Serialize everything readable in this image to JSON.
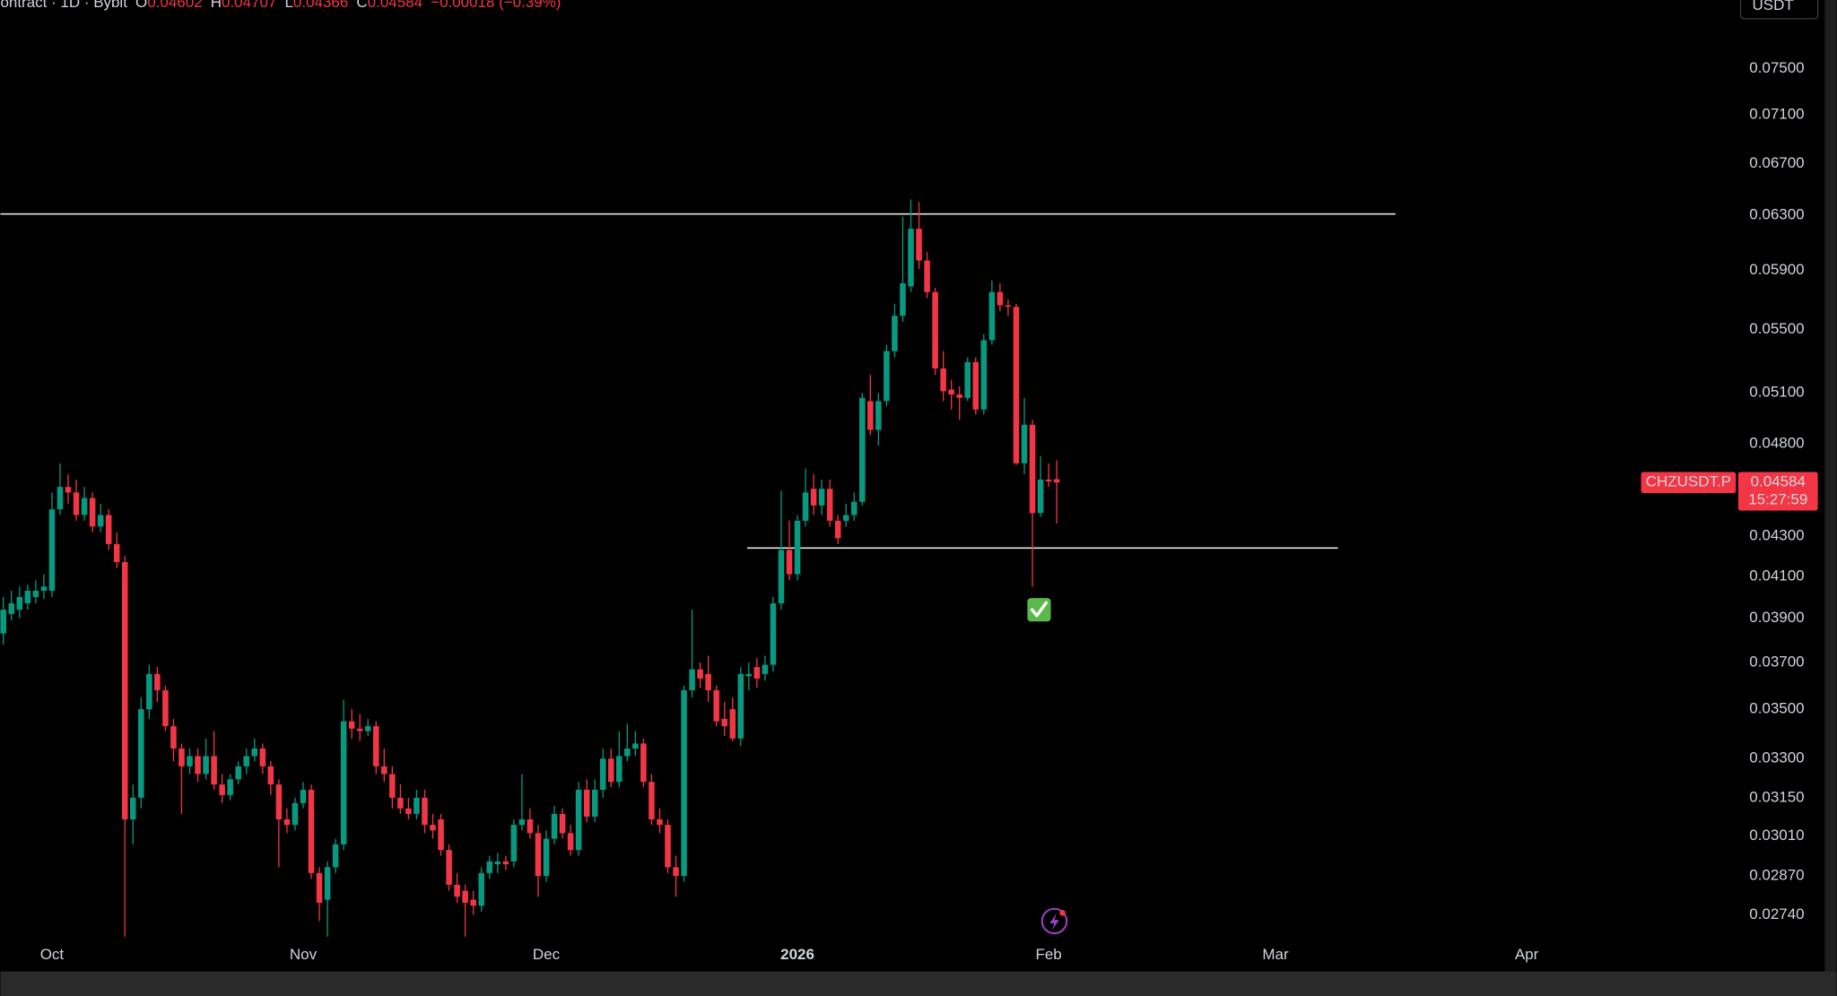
{
  "chart_data": {
    "type": "candlestick",
    "header": {
      "symbol": "ontract · 1D · Bybit",
      "open_label": "O",
      "high_label": "H",
      "low_label": "L",
      "close_label": "C",
      "change": "−0.00018 (−0.39%)"
    },
    "currency": "USDT",
    "ticker": "CHZUSDT.P",
    "countdown": "15:27:59",
    "up_color": "#089981",
    "down_color": "#f23645",
    "log_scale": true,
    "grid": false,
    "xlim": [
      -0.36,
      212.8
    ],
    "xticks": [
      {
        "value": 6,
        "label": "Oct"
      },
      {
        "value": 37,
        "label": "Nov"
      },
      {
        "value": 67,
        "label": "Dec"
      },
      {
        "value": 98,
        "label": "2026"
      },
      {
        "value": 129,
        "label": "Feb"
      },
      {
        "value": 157,
        "label": "Mar"
      },
      {
        "value": 188,
        "label": "Apr"
      }
    ],
    "ylim": [
      0.0266,
      0.0814
    ],
    "yticks": [
      {
        "value": 0.075,
        "label": "0.07500"
      },
      {
        "value": 0.071,
        "label": "0.07100"
      },
      {
        "value": 0.067,
        "label": "0.06700"
      },
      {
        "value": 0.063,
        "label": "0.06300"
      },
      {
        "value": 0.059,
        "label": "0.05900"
      },
      {
        "value": 0.055,
        "label": "0.05500"
      },
      {
        "value": 0.051,
        "label": "0.05100"
      },
      {
        "value": 0.048,
        "label": "0.04800"
      },
      {
        "value": 0.043,
        "label": "0.04300"
      },
      {
        "value": 0.041,
        "label": "0.04100"
      },
      {
        "value": 0.039,
        "label": "0.03900"
      },
      {
        "value": 0.037,
        "label": "0.03700"
      },
      {
        "value": 0.035,
        "label": "0.03500"
      },
      {
        "value": 0.033,
        "label": "0.03300"
      },
      {
        "value": 0.0315,
        "label": "0.03150"
      },
      {
        "value": 0.0301,
        "label": "0.03010"
      },
      {
        "value": 0.0287,
        "label": "0.02870"
      },
      {
        "value": 0.0274,
        "label": "0.02740"
      }
    ],
    "hlines": [
      {
        "value": 0.0631,
        "x_start": -0.36,
        "x_end": 171.8
      },
      {
        "value": 0.0424,
        "x_start": 91.8,
        "x_end": 164.7
      }
    ],
    "series": {
      "open": [
        0.0383,
        0.0392,
        0.0394,
        0.0397,
        0.04,
        0.0403,
        0.0403,
        0.0444,
        0.0456,
        0.0453,
        0.0441,
        0.045,
        0.0435,
        0.0441,
        0.0426,
        0.0417,
        0.0307,
        0.0315,
        0.035,
        0.0365,
        0.0358,
        0.0343,
        0.0334,
        0.0327,
        0.0331,
        0.0324,
        0.0331,
        0.032,
        0.0316,
        0.0322,
        0.0327,
        0.0331,
        0.0334,
        0.0327,
        0.032,
        0.0307,
        0.0305,
        0.0313,
        0.0318,
        0.0288,
        0.0279,
        0.029,
        0.0298,
        0.0345,
        0.0342,
        0.0341,
        0.0343,
        0.0327,
        0.0324,
        0.0315,
        0.0311,
        0.0309,
        0.0315,
        0.0305,
        0.0307,
        0.0296,
        0.0284,
        0.0282,
        0.0279,
        0.0277,
        0.0288,
        0.0291,
        0.0292,
        0.0292,
        0.0305,
        0.0307,
        0.0302,
        0.0287,
        0.03,
        0.0309,
        0.0302,
        0.0296,
        0.0318,
        0.0308,
        0.0318,
        0.033,
        0.0321,
        0.0331,
        0.0334,
        0.0336,
        0.0321,
        0.0307,
        0.0305,
        0.029,
        0.0287,
        0.0358,
        0.0367,
        0.0365,
        0.0358,
        0.0346,
        0.035,
        0.0338,
        0.0364,
        0.0368,
        0.0365,
        0.0369,
        0.0397,
        0.0423,
        0.0411,
        0.0438,
        0.0455,
        0.0446,
        0.0455,
        0.0438,
        0.0438,
        0.0441,
        0.0448,
        0.0505,
        0.0488,
        0.0505,
        0.0536,
        0.0559,
        0.0579,
        0.062,
        0.0597,
        0.0575,
        0.0525,
        0.0512,
        0.0509,
        0.0507,
        0.0529,
        0.05,
        0.0543,
        0.0575,
        0.0566,
        0.0565,
        0.0469,
        0.0491,
        0.0442,
        0.046,
        0.04602
      ],
      "high": [
        0.04,
        0.0403,
        0.0405,
        0.0406,
        0.0408,
        0.0411,
        0.0453,
        0.0469,
        0.0463,
        0.046,
        0.0456,
        0.0453,
        0.0447,
        0.0444,
        0.0432,
        0.042,
        0.032,
        0.0355,
        0.0369,
        0.0368,
        0.036,
        0.0346,
        0.0336,
        0.0334,
        0.0334,
        0.0338,
        0.0341,
        0.0324,
        0.0324,
        0.0329,
        0.0334,
        0.0338,
        0.0336,
        0.0329,
        0.0322,
        0.0311,
        0.0315,
        0.0321,
        0.032,
        0.029,
        0.0292,
        0.03,
        0.0354,
        0.035,
        0.0348,
        0.0346,
        0.0345,
        0.0334,
        0.0327,
        0.032,
        0.0315,
        0.0318,
        0.0318,
        0.0309,
        0.0309,
        0.0298,
        0.0288,
        0.0284,
        0.0282,
        0.029,
        0.0294,
        0.0295,
        0.0294,
        0.0307,
        0.0324,
        0.0311,
        0.0305,
        0.0303,
        0.0312,
        0.0311,
        0.0305,
        0.0321,
        0.0322,
        0.0322,
        0.0334,
        0.0334,
        0.0341,
        0.0344,
        0.0341,
        0.0338,
        0.0324,
        0.0311,
        0.0307,
        0.0294,
        0.036,
        0.0394,
        0.037,
        0.0373,
        0.036,
        0.0353,
        0.0355,
        0.0368,
        0.037,
        0.0372,
        0.0373,
        0.04,
        0.0454,
        0.0438,
        0.0441,
        0.0466,
        0.0463,
        0.046,
        0.046,
        0.0441,
        0.0447,
        0.0453,
        0.051,
        0.0521,
        0.051,
        0.054,
        0.0567,
        0.0629,
        0.0642,
        0.064,
        0.0603,
        0.0578,
        0.0536,
        0.0518,
        0.0514,
        0.0532,
        0.0532,
        0.0547,
        0.0583,
        0.0581,
        0.057,
        0.0567,
        0.0507,
        0.0494,
        0.0473,
        0.0469,
        0.04707
      ],
      "low": [
        0.0378,
        0.0389,
        0.039,
        0.0394,
        0.0397,
        0.0399,
        0.04,
        0.0441,
        0.0447,
        0.0438,
        0.0438,
        0.0432,
        0.0432,
        0.0423,
        0.0414,
        0.0267,
        0.0298,
        0.0311,
        0.0346,
        0.0353,
        0.0341,
        0.0329,
        0.0309,
        0.0324,
        0.0321,
        0.0322,
        0.0318,
        0.0313,
        0.0314,
        0.032,
        0.0324,
        0.0329,
        0.0324,
        0.0316,
        0.029,
        0.0302,
        0.0303,
        0.0311,
        0.0286,
        0.0272,
        0.0267,
        0.0288,
        0.0296,
        0.0338,
        0.0337,
        0.0339,
        0.0324,
        0.0321,
        0.0311,
        0.0309,
        0.0307,
        0.0307,
        0.0302,
        0.03,
        0.0294,
        0.0282,
        0.0278,
        0.0267,
        0.0274,
        0.0275,
        0.0286,
        0.0288,
        0.0289,
        0.029,
        0.0303,
        0.03,
        0.028,
        0.0285,
        0.0298,
        0.03,
        0.0294,
        0.0294,
        0.0306,
        0.0306,
        0.0315,
        0.0319,
        0.0319,
        0.0329,
        0.0331,
        0.0319,
        0.0305,
        0.0302,
        0.0288,
        0.028,
        0.0285,
        0.0355,
        0.0359,
        0.0353,
        0.0343,
        0.0339,
        0.0337,
        0.0335,
        0.0358,
        0.0359,
        0.0362,
        0.0366,
        0.0394,
        0.0408,
        0.0408,
        0.0435,
        0.0441,
        0.0441,
        0.0435,
        0.0426,
        0.0435,
        0.0438,
        0.0446,
        0.0485,
        0.0479,
        0.0502,
        0.0532,
        0.0555,
        0.0575,
        0.0591,
        0.0571,
        0.0521,
        0.0505,
        0.05,
        0.0494,
        0.0505,
        0.0497,
        0.0497,
        0.054,
        0.0562,
        0.0559,
        0.0468,
        0.0463,
        0.0405,
        0.044,
        0.0456,
        0.04366
      ],
      "close": [
        0.0394,
        0.0397,
        0.04,
        0.0403,
        0.0403,
        0.0405,
        0.0444,
        0.0456,
        0.0453,
        0.0441,
        0.045,
        0.0435,
        0.0441,
        0.0426,
        0.0417,
        0.0307,
        0.0315,
        0.035,
        0.0365,
        0.0358,
        0.0343,
        0.0334,
        0.0327,
        0.0331,
        0.0324,
        0.0331,
        0.032,
        0.0316,
        0.0322,
        0.0327,
        0.0331,
        0.0334,
        0.0327,
        0.032,
        0.0307,
        0.0305,
        0.0313,
        0.0318,
        0.0288,
        0.0278,
        0.029,
        0.0298,
        0.0345,
        0.0342,
        0.0341,
        0.0343,
        0.0327,
        0.0324,
        0.0315,
        0.0311,
        0.0309,
        0.0315,
        0.0305,
        0.0303,
        0.0296,
        0.0284,
        0.028,
        0.0278,
        0.0277,
        0.0288,
        0.0292,
        0.0292,
        0.0291,
        0.0305,
        0.0307,
        0.0302,
        0.0287,
        0.03,
        0.0309,
        0.0302,
        0.0296,
        0.0318,
        0.0308,
        0.0318,
        0.033,
        0.0321,
        0.0331,
        0.0334,
        0.0336,
        0.0321,
        0.0307,
        0.0305,
        0.029,
        0.0287,
        0.0358,
        0.0367,
        0.0363,
        0.0358,
        0.0345,
        0.0343,
        0.0338,
        0.0365,
        0.0365,
        0.0363,
        0.0369,
        0.0397,
        0.0423,
        0.0411,
        0.0438,
        0.0453,
        0.0446,
        0.0455,
        0.0438,
        0.0429,
        0.0441,
        0.0448,
        0.0507,
        0.0488,
        0.0505,
        0.0536,
        0.0559,
        0.0581,
        0.062,
        0.0597,
        0.0575,
        0.0525,
        0.0511,
        0.0509,
        0.0507,
        0.0529,
        0.05,
        0.0543,
        0.0575,
        0.0566,
        0.0565,
        0.0469,
        0.0491,
        0.0442,
        0.046,
        0.0459,
        0.04584
      ]
    }
  }
}
